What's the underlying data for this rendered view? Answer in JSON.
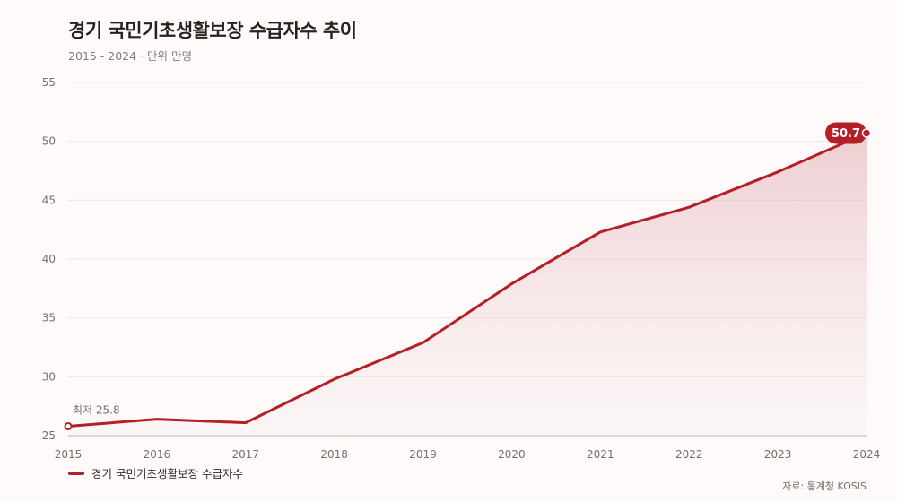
{
  "header": {
    "title": "경기 국민기초생활보장 수급자수 추이",
    "subtitle": "2015 - 2024 · 단위 만명"
  },
  "footer": {
    "source": "자료: 통계청 KOSIS"
  },
  "colors": {
    "line": "#b51f27",
    "fill": "#e8bfc3",
    "grid": "#f1e4e4",
    "axis": "#c9b3b3"
  },
  "annotations": {
    "min_label": "최저 25.8",
    "max_label": "50.7"
  },
  "chart_data": {
    "type": "area",
    "x": [
      "2015",
      "2016",
      "2017",
      "2018",
      "2019",
      "2020",
      "2021",
      "2022",
      "2023",
      "2024"
    ],
    "series": [
      {
        "name": "경기 국민기초생활보장 수급자수",
        "values": [
          25.8,
          26.4,
          26.1,
          29.8,
          32.9,
          37.9,
          42.3,
          44.4,
          47.4,
          50.7
        ]
      }
    ],
    "ylim": [
      25,
      55
    ],
    "yticks": [
      25,
      30,
      35,
      40,
      45,
      50,
      55
    ],
    "grid": true,
    "legend": "bottom-left"
  }
}
